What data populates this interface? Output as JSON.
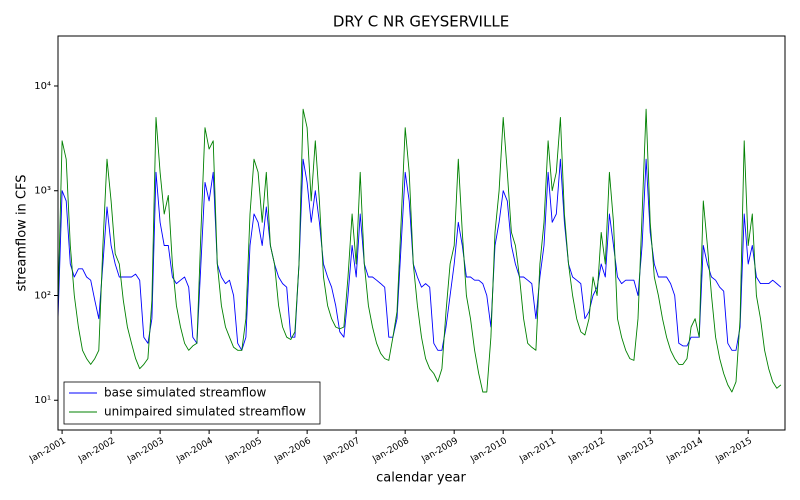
{
  "chart_data": {
    "type": "line",
    "title": "DRY C NR GEYSERVILLE",
    "xlabel": "calendar year",
    "ylabel": "streamflow in CFS",
    "yscale": "log",
    "legend": "lower left",
    "xlim": [
      "2000-12",
      "2015-10"
    ],
    "ylim": [
      5.2,
      30000
    ],
    "yticks": [
      {
        "value": 10,
        "label": "10¹"
      },
      {
        "value": 100,
        "label": "10²"
      },
      {
        "value": 1000,
        "label": "10³"
      },
      {
        "value": 10000,
        "label": "10⁴"
      }
    ],
    "xticks": [
      {
        "value": "2001-01",
        "label": "Jan-2001"
      },
      {
        "value": "2002-01",
        "label": "Jan-2002"
      },
      {
        "value": "2003-01",
        "label": "Jan-2003"
      },
      {
        "value": "2004-01",
        "label": "Jan-2004"
      },
      {
        "value": "2005-01",
        "label": "Jan-2005"
      },
      {
        "value": "2006-01",
        "label": "Jan-2006"
      },
      {
        "value": "2007-01",
        "label": "Jan-2007"
      },
      {
        "value": "2008-01",
        "label": "Jan-2008"
      },
      {
        "value": "2009-01",
        "label": "Jan-2009"
      },
      {
        "value": "2010-01",
        "label": "Jan-2010"
      },
      {
        "value": "2011-01",
        "label": "Jan-2011"
      },
      {
        "value": "2012-01",
        "label": "Jan-2012"
      },
      {
        "value": "2013-01",
        "label": "Jan-2013"
      },
      {
        "value": "2014-01",
        "label": "Jan-2014"
      },
      {
        "value": "2015-01",
        "label": "Jan-2015"
      }
    ],
    "x": [
      "2000-12",
      "2001-01",
      "2001-02",
      "2001-03",
      "2001-04",
      "2001-05",
      "2001-06",
      "2001-07",
      "2001-08",
      "2001-09",
      "2001-10",
      "2001-11",
      "2001-12",
      "2002-01",
      "2002-02",
      "2002-03",
      "2002-04",
      "2002-05",
      "2002-06",
      "2002-07",
      "2002-08",
      "2002-09",
      "2002-10",
      "2002-11",
      "2002-12",
      "2003-01",
      "2003-02",
      "2003-03",
      "2003-04",
      "2003-05",
      "2003-06",
      "2003-07",
      "2003-08",
      "2003-09",
      "2003-10",
      "2003-11",
      "2003-12",
      "2004-01",
      "2004-02",
      "2004-03",
      "2004-04",
      "2004-05",
      "2004-06",
      "2004-07",
      "2004-08",
      "2004-09",
      "2004-10",
      "2004-11",
      "2004-12",
      "2005-01",
      "2005-02",
      "2005-03",
      "2005-04",
      "2005-05",
      "2005-06",
      "2005-07",
      "2005-08",
      "2005-09",
      "2005-10",
      "2005-11",
      "2005-12",
      "2006-01",
      "2006-02",
      "2006-03",
      "2006-04",
      "2006-05",
      "2006-06",
      "2006-07",
      "2006-08",
      "2006-09",
      "2006-10",
      "2006-11",
      "2006-12",
      "2007-01",
      "2007-02",
      "2007-03",
      "2007-04",
      "2007-05",
      "2007-06",
      "2007-07",
      "2007-08",
      "2007-09",
      "2007-10",
      "2007-11",
      "2007-12",
      "2008-01",
      "2008-02",
      "2008-03",
      "2008-04",
      "2008-05",
      "2008-06",
      "2008-07",
      "2008-08",
      "2008-09",
      "2008-10",
      "2008-11",
      "2008-12",
      "2009-01",
      "2009-02",
      "2009-03",
      "2009-04",
      "2009-05",
      "2009-06",
      "2009-07",
      "2009-08",
      "2009-09",
      "2009-10",
      "2009-11",
      "2009-12",
      "2010-01",
      "2010-02",
      "2010-03",
      "2010-04",
      "2010-05",
      "2010-06",
      "2010-07",
      "2010-08",
      "2010-09",
      "2010-10",
      "2010-11",
      "2010-12",
      "2011-01",
      "2011-02",
      "2011-03",
      "2011-04",
      "2011-05",
      "2011-06",
      "2011-07",
      "2011-08",
      "2011-09",
      "2011-10",
      "2011-11",
      "2011-12",
      "2012-01",
      "2012-02",
      "2012-03",
      "2012-04",
      "2012-05",
      "2012-06",
      "2012-07",
      "2012-08",
      "2012-09",
      "2012-10",
      "2012-11",
      "2012-12",
      "2013-01",
      "2013-02",
      "2013-03",
      "2013-04",
      "2013-05",
      "2013-06",
      "2013-07",
      "2013-08",
      "2013-09",
      "2013-10",
      "2013-11",
      "2013-12",
      "2014-01",
      "2014-02",
      "2014-03",
      "2014-04",
      "2014-05",
      "2014-06",
      "2014-07",
      "2014-08",
      "2014-09",
      "2014-10",
      "2014-11",
      "2014-12",
      "2015-01",
      "2015-02",
      "2015-03",
      "2015-04",
      "2015-05",
      "2015-06",
      "2015-07",
      "2015-08",
      "2015-09"
    ],
    "series": [
      {
        "name": "base simulated streamflow",
        "color": "#0000ff",
        "values": [
          60,
          1000,
          800,
          200,
          150,
          180,
          180,
          150,
          140,
          90,
          60,
          200,
          700,
          300,
          200,
          150,
          150,
          150,
          150,
          160,
          140,
          40,
          35,
          60,
          1500,
          500,
          300,
          300,
          150,
          130,
          140,
          150,
          120,
          40,
          35,
          200,
          1200,
          800,
          1500,
          200,
          150,
          130,
          140,
          100,
          35,
          30,
          40,
          300,
          600,
          500,
          300,
          700,
          300,
          200,
          150,
          130,
          120,
          40,
          40,
          200,
          2000,
          1200,
          500,
          1000,
          500,
          200,
          150,
          120,
          80,
          45,
          40,
          100,
          300,
          150,
          600,
          200,
          150,
          150,
          140,
          130,
          120,
          40,
          40,
          60,
          300,
          1500,
          800,
          200,
          150,
          120,
          130,
          120,
          35,
          30,
          30,
          50,
          100,
          200,
          500,
          300,
          150,
          150,
          140,
          140,
          130,
          100,
          50,
          300,
          500,
          1000,
          800,
          300,
          200,
          150,
          150,
          140,
          130,
          60,
          150,
          300,
          1500,
          500,
          600,
          2000,
          500,
          200,
          150,
          140,
          130,
          60,
          70,
          100,
          120,
          200,
          150,
          600,
          300,
          150,
          130,
          140,
          140,
          140,
          100,
          300,
          2000,
          400,
          200,
          150,
          150,
          150,
          130,
          100,
          35,
          33,
          33,
          40,
          40,
          40,
          300,
          200,
          150,
          140,
          120,
          110,
          35,
          30,
          30,
          50,
          600,
          200,
          300,
          150,
          130,
          130,
          130,
          140,
          130,
          120
        ]
      },
      {
        "name": "unimpaired simulated streamflow",
        "color": "#008000",
        "values": [
          80,
          3000,
          2000,
          300,
          100,
          50,
          30,
          25,
          22,
          25,
          30,
          300,
          2000,
          800,
          250,
          200,
          90,
          50,
          35,
          25,
          20,
          22,
          25,
          90,
          5000,
          1500,
          600,
          900,
          200,
          80,
          50,
          35,
          30,
          33,
          35,
          400,
          4000,
          2500,
          3000,
          200,
          80,
          50,
          40,
          32,
          30,
          30,
          60,
          600,
          2000,
          1500,
          500,
          1500,
          300,
          200,
          80,
          50,
          40,
          38,
          45,
          200,
          6000,
          4000,
          800,
          3000,
          800,
          150,
          80,
          60,
          50,
          48,
          50,
          150,
          600,
          200,
          1500,
          200,
          80,
          50,
          35,
          28,
          25,
          24,
          40,
          70,
          500,
          4000,
          1500,
          200,
          80,
          40,
          25,
          20,
          18,
          15,
          20,
          70,
          200,
          300,
          2000,
          400,
          100,
          60,
          30,
          18,
          12,
          12,
          40,
          400,
          1000,
          5000,
          1500,
          400,
          300,
          150,
          60,
          35,
          32,
          30,
          200,
          500,
          3000,
          1000,
          1500,
          5000,
          600,
          200,
          100,
          60,
          45,
          42,
          60,
          150,
          100,
          400,
          200,
          1500,
          500,
          60,
          40,
          30,
          25,
          24,
          60,
          600,
          6000,
          500,
          150,
          100,
          60,
          40,
          30,
          25,
          22,
          22,
          25,
          50,
          60,
          40,
          800,
          300,
          100,
          40,
          25,
          18,
          14,
          12,
          15,
          60,
          3000,
          300,
          600,
          100,
          60,
          30,
          20,
          15,
          13,
          14
        ]
      }
    ]
  }
}
